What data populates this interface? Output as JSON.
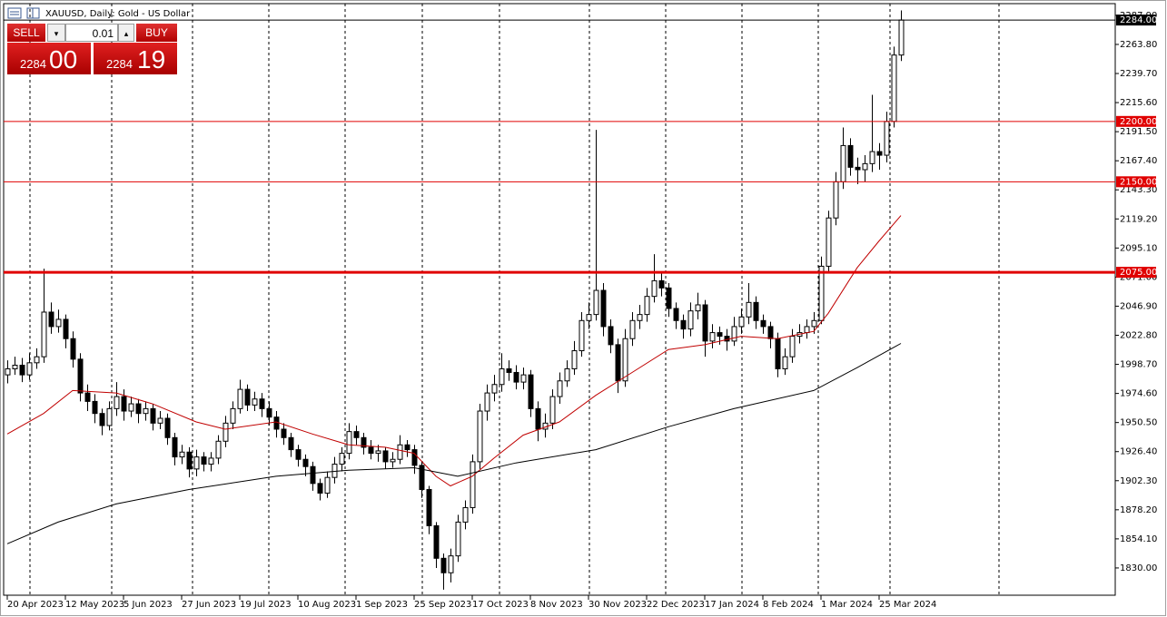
{
  "header": {
    "title": "XAUUSD, Daily:  Gold - US Dollar"
  },
  "trade_panel": {
    "sell": "SELL",
    "buy": "BUY",
    "volume": "0.01",
    "bid_big": "2284",
    "bid_small": "00",
    "ask_big": "2284",
    "ask_small": "19"
  },
  "chart_data": {
    "type": "candlestick",
    "ylim": [
      1807.4,
      2297.6
    ],
    "yticks": [
      {
        "value": 1830,
        "label": "1830.00"
      },
      {
        "value": 1854.1,
        "label": "1854.10"
      },
      {
        "value": 1878.2,
        "label": "1878.20"
      },
      {
        "value": 1902.3,
        "label": "1902.30"
      },
      {
        "value": 1926.4,
        "label": "1926.40"
      },
      {
        "value": 1950.5,
        "label": "1950.50"
      },
      {
        "value": 1974.6,
        "label": "1974.60"
      },
      {
        "value": 1998.7,
        "label": "1998.70"
      },
      {
        "value": 2022.8,
        "label": "2022.80"
      },
      {
        "value": 2046.9,
        "label": "2046.90"
      },
      {
        "value": 2071,
        "label": "2071.00"
      },
      {
        "value": 2095.1,
        "label": "2095.10"
      },
      {
        "value": 2119.2,
        "label": "2119.20"
      },
      {
        "value": 2143.3,
        "label": "2143.30"
      },
      {
        "value": 2167.4,
        "label": "2167.40"
      },
      {
        "value": 2191.5,
        "label": "2191.50"
      },
      {
        "value": 2215.6,
        "label": "2215.60"
      },
      {
        "value": 2239.7,
        "label": "2239.70"
      },
      {
        "value": 2263.8,
        "label": "2263.80"
      },
      {
        "value": 2287.9,
        "label": "2287.90"
      }
    ],
    "xlim": [
      -0.5,
      152.5
    ],
    "xticks": [
      {
        "value": 0,
        "label": "20 Apr 2023"
      },
      {
        "value": 8,
        "label": "12 May 2023"
      },
      {
        "value": 16,
        "label": "5 Jun 2023"
      },
      {
        "value": 24,
        "label": "27 Jun 2023"
      },
      {
        "value": 32,
        "label": "19 Jul 2023"
      },
      {
        "value": 40,
        "label": "10 Aug 2023"
      },
      {
        "value": 48,
        "label": "1 Sep 2023"
      },
      {
        "value": 56,
        "label": "25 Sep 2023"
      },
      {
        "value": 64,
        "label": "17 Oct 2023"
      },
      {
        "value": 72,
        "label": "8 Nov 2023"
      },
      {
        "value": 80,
        "label": "30 Nov 2023"
      },
      {
        "value": 88,
        "label": "22 Dec 2023"
      },
      {
        "value": 96,
        "label": "17 Jan 2024"
      },
      {
        "value": 104,
        "label": "8 Feb 2024"
      },
      {
        "value": 112,
        "label": "1 Mar 2024"
      },
      {
        "value": 120,
        "label": "25 Mar 2024"
      }
    ],
    "levels": [
      {
        "value": 2284,
        "label": "2284.00",
        "color": "#000000",
        "width": 1
      },
      {
        "value": 2200,
        "label": "2200.00",
        "color": "#e00000",
        "width": 1
      },
      {
        "value": 2150,
        "label": "2150.00",
        "color": "#e00000",
        "width": 1
      },
      {
        "value": 2075,
        "label": "2075.00",
        "color": "#e00000",
        "width": 3
      }
    ],
    "up_color": "#ffffff",
    "down_color": "#000000",
    "edge_color": "#000000",
    "candles": [
      [
        1990,
        2002,
        1983,
        1995
      ],
      [
        1995,
        2005,
        1990,
        1998
      ],
      [
        1998,
        2004,
        1984,
        1990
      ],
      [
        1990,
        2008,
        1986,
        2000
      ],
      [
        2000,
        2012,
        1995,
        2005
      ],
      [
        2005,
        2078,
        2000,
        2042
      ],
      [
        2042,
        2050,
        2024,
        2030
      ],
      [
        2030,
        2044,
        2025,
        2036
      ],
      [
        2036,
        2040,
        2012,
        2020
      ],
      [
        2020,
        2026,
        1996,
        2003
      ],
      [
        2003,
        2008,
        1968,
        1975
      ],
      [
        1975,
        1982,
        1960,
        1968
      ],
      [
        1968,
        1974,
        1950,
        1958
      ],
      [
        1958,
        1962,
        1940,
        1948
      ],
      [
        1948,
        1968,
        1944,
        1962
      ],
      [
        1962,
        1984,
        1956,
        1972
      ],
      [
        1972,
        1978,
        1952,
        1960
      ],
      [
        1960,
        1972,
        1955,
        1966
      ],
      [
        1966,
        1970,
        1950,
        1958
      ],
      [
        1958,
        1968,
        1952,
        1962
      ],
      [
        1962,
        1966,
        1944,
        1950
      ],
      [
        1950,
        1960,
        1945,
        1954
      ],
      [
        1954,
        1958,
        1932,
        1938
      ],
      [
        1938,
        1942,
        1915,
        1922
      ],
      [
        1922,
        1932,
        1916,
        1926
      ],
      [
        1926,
        1930,
        1905,
        1912
      ],
      [
        1912,
        1928,
        1906,
        1922
      ],
      [
        1922,
        1926,
        1910,
        1916
      ],
      [
        1916,
        1926,
        1910,
        1921
      ],
      [
        1921,
        1940,
        1916,
        1935
      ],
      [
        1935,
        1956,
        1930,
        1950
      ],
      [
        1950,
        1968,
        1945,
        1962
      ],
      [
        1962,
        1986,
        1958,
        1978
      ],
      [
        1978,
        1982,
        1960,
        1965
      ],
      [
        1965,
        1976,
        1960,
        1970
      ],
      [
        1970,
        1975,
        1955,
        1962
      ],
      [
        1962,
        1968,
        1948,
        1955
      ],
      [
        1955,
        1960,
        1938,
        1945
      ],
      [
        1945,
        1950,
        1932,
        1938
      ],
      [
        1938,
        1942,
        1922,
        1928
      ],
      [
        1928,
        1932,
        1914,
        1920
      ],
      [
        1920,
        1924,
        1906,
        1914
      ],
      [
        1914,
        1918,
        1894,
        1900
      ],
      [
        1900,
        1904,
        1886,
        1892
      ],
      [
        1892,
        1910,
        1888,
        1905
      ],
      [
        1905,
        1922,
        1900,
        1916
      ],
      [
        1916,
        1930,
        1910,
        1925
      ],
      [
        1925,
        1950,
        1920,
        1943
      ],
      [
        1943,
        1948,
        1932,
        1938
      ],
      [
        1938,
        1942,
        1924,
        1930
      ],
      [
        1930,
        1936,
        1920,
        1925
      ],
      [
        1925,
        1932,
        1918,
        1927
      ],
      [
        1927,
        1930,
        1912,
        1918
      ],
      [
        1918,
        1926,
        1913,
        1920
      ],
      [
        1920,
        1940,
        1916,
        1932
      ],
      [
        1932,
        1936,
        1922,
        1928
      ],
      [
        1928,
        1932,
        1908,
        1915
      ],
      [
        1915,
        1918,
        1888,
        1895
      ],
      [
        1895,
        1898,
        1858,
        1865
      ],
      [
        1865,
        1868,
        1830,
        1838
      ],
      [
        1838,
        1842,
        1812,
        1826
      ],
      [
        1826,
        1846,
        1818,
        1840
      ],
      [
        1840,
        1874,
        1835,
        1868
      ],
      [
        1868,
        1886,
        1862,
        1880
      ],
      [
        1880,
        1924,
        1875,
        1918
      ],
      [
        1918,
        1966,
        1912,
        1960
      ],
      [
        1960,
        1982,
        1952,
        1975
      ],
      [
        1975,
        1990,
        1968,
        1982
      ],
      [
        1982,
        2008,
        1976,
        1995
      ],
      [
        1995,
        2002,
        1985,
        1992
      ],
      [
        1992,
        1998,
        1978,
        1984
      ],
      [
        1984,
        1996,
        1978,
        1990
      ],
      [
        1990,
        1994,
        1955,
        1962
      ],
      [
        1962,
        1968,
        1935,
        1945
      ],
      [
        1945,
        1958,
        1938,
        1950
      ],
      [
        1950,
        1978,
        1945,
        1972
      ],
      [
        1972,
        1992,
        1966,
        1985
      ],
      [
        1985,
        2002,
        1980,
        1995
      ],
      [
        1995,
        2018,
        1990,
        2010
      ],
      [
        2010,
        2042,
        2005,
        2035
      ],
      [
        2035,
        2050,
        2028,
        2040
      ],
      [
        2040,
        2193,
        2035,
        2060
      ],
      [
        2060,
        2066,
        2022,
        2030
      ],
      [
        2030,
        2036,
        2008,
        2015
      ],
      [
        2015,
        2020,
        1975,
        1985
      ],
      [
        1985,
        2028,
        1980,
        2020
      ],
      [
        2020,
        2042,
        2014,
        2035
      ],
      [
        2035,
        2048,
        2028,
        2040
      ],
      [
        2040,
        2062,
        2034,
        2055
      ],
      [
        2055,
        2090,
        2050,
        2068
      ],
      [
        2068,
        2074,
        2055,
        2062
      ],
      [
        2062,
        2066,
        2038,
        2045
      ],
      [
        2045,
        2050,
        2028,
        2035
      ],
      [
        2035,
        2040,
        2020,
        2028
      ],
      [
        2028,
        2050,
        2022,
        2043
      ],
      [
        2043,
        2058,
        2036,
        2048
      ],
      [
        2048,
        2052,
        2005,
        2018
      ],
      [
        2018,
        2032,
        2012,
        2025
      ],
      [
        2025,
        2030,
        2015,
        2022
      ],
      [
        2022,
        2028,
        2010,
        2018
      ],
      [
        2018,
        2038,
        2014,
        2030
      ],
      [
        2030,
        2045,
        2024,
        2038
      ],
      [
        2038,
        2066,
        2032,
        2050
      ],
      [
        2050,
        2055,
        2028,
        2035
      ],
      [
        2035,
        2040,
        2024,
        2030
      ],
      [
        2030,
        2034,
        2012,
        2020
      ],
      [
        2020,
        2025,
        1988,
        1995
      ],
      [
        1995,
        2012,
        1990,
        2005
      ],
      [
        2005,
        2028,
        2000,
        2022
      ],
      [
        2022,
        2032,
        2016,
        2025
      ],
      [
        2025,
        2036,
        2020,
        2030
      ],
      [
        2030,
        2042,
        2024,
        2035
      ],
      [
        2035,
        2088,
        2032,
        2080
      ],
      [
        2080,
        2126,
        2074,
        2120
      ],
      [
        2120,
        2158,
        2114,
        2150
      ],
      [
        2150,
        2195,
        2144,
        2180
      ],
      [
        2180,
        2186,
        2155,
        2162
      ],
      [
        2162,
        2170,
        2148,
        2160
      ],
      [
        2160,
        2172,
        2150,
        2165
      ],
      [
        2165,
        2222,
        2158,
        2175
      ],
      [
        2175,
        2182,
        2160,
        2172
      ],
      [
        2172,
        2208,
        2166,
        2200
      ],
      [
        2200,
        2262,
        2195,
        2255
      ],
      [
        2255,
        2292,
        2250,
        2284
      ]
    ],
    "moving_averages": [
      {
        "color": "#c00000",
        "x": [
          0,
          5,
          9,
          15,
          20,
          26,
          30,
          37,
          42,
          47,
          52,
          56,
          59,
          61,
          64,
          67,
          71,
          76,
          81,
          86,
          91,
          96,
          101,
          106,
          111,
          113,
          117,
          120,
          123
        ],
        "values": [
          1941,
          1958,
          1977,
          1975,
          1966,
          1951,
          1945,
          1951,
          1941,
          1932,
          1930,
          1925,
          1906,
          1898,
          1906,
          1921,
          1940,
          1951,
          1973,
          1992,
          2011,
          2015,
          2022,
          2020,
          2026,
          2041,
          2079,
          2101,
          2122
        ]
      },
      {
        "color": "#000000",
        "x": [
          0,
          7,
          15,
          25,
          37,
          47,
          56,
          62,
          70,
          81,
          91,
          100,
          111,
          117,
          123
        ],
        "values": [
          1850,
          1868,
          1883,
          1895,
          1906,
          1911,
          1913,
          1906,
          1917,
          1928,
          1947,
          1962,
          1977,
          1996,
          2016
        ]
      }
    ]
  }
}
